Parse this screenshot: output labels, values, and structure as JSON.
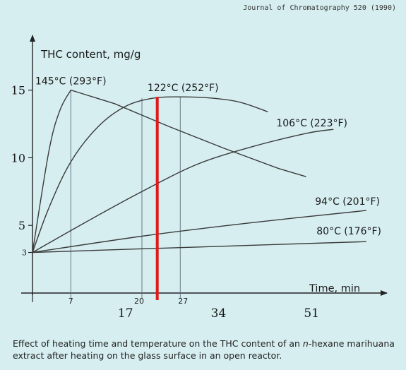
{
  "header": {
    "journal": "Journal of Chromatography 520 (1990)"
  },
  "caption": {
    "part1": "Effect of heating time and temperature on the THC content of an ",
    "italic": "n",
    "part2": "-hexane marihuana extract after heating on the glass surface in an open reactor."
  },
  "chart_data": {
    "type": "line",
    "xlabel": "Time, min",
    "ylabel": "THC content, mg/g",
    "xlim": [
      0,
      64
    ],
    "ylim": [
      0,
      19
    ],
    "y_ticks": [
      {
        "value": 3,
        "label": "3"
      },
      {
        "value": 5,
        "label": "5"
      },
      {
        "value": 10,
        "label": "10"
      },
      {
        "value": 15,
        "label": "15"
      }
    ],
    "x_small_ticks": [
      {
        "value": 7,
        "label": "7"
      },
      {
        "value": 20,
        "label": "20"
      },
      {
        "value": 27,
        "label": "27"
      }
    ],
    "x_large_ticks": [
      {
        "value": 17,
        "label": "17"
      },
      {
        "value": 34,
        "label": "34"
      },
      {
        "value": 51,
        "label": "51"
      }
    ],
    "series": [
      {
        "name": "145°C (293°F)",
        "x": [
          0,
          3,
          5,
          7,
          15,
          25,
          35,
          45,
          50
        ],
        "y": [
          3,
          10.5,
          13.5,
          15,
          14,
          12.3,
          10.7,
          9.2,
          8.6
        ]
      },
      {
        "name": "122°C (252°F)",
        "x": [
          0,
          3,
          7,
          12,
          17,
          22,
          27,
          33,
          38,
          43
        ],
        "y": [
          3,
          6.3,
          9.7,
          12.3,
          13.8,
          14.4,
          14.5,
          14.4,
          14.1,
          13.4
        ]
      },
      {
        "name": "106°C (223°F)",
        "x": [
          0,
          10,
          20,
          30,
          40,
          50,
          55
        ],
        "y": [
          3,
          5.3,
          7.5,
          9.5,
          10.8,
          11.8,
          12.1
        ]
      },
      {
        "name": "94°C (201°F)",
        "x": [
          0,
          20,
          40,
          61
        ],
        "y": [
          3,
          4.2,
          5.2,
          6.1
        ]
      },
      {
        "name": "80°C (176°F)",
        "x": [
          0,
          30,
          61
        ],
        "y": [
          3,
          3.4,
          3.8
        ]
      }
    ],
    "guides": [
      {
        "x": 7,
        "y": 15
      },
      {
        "x": 20,
        "y": 14.4
      },
      {
        "x": 27,
        "y": 14.5
      }
    ],
    "highlight": {
      "x": 22.8,
      "y_from": 0,
      "y_to": 14.5,
      "color": "#e01818"
    },
    "colors": {
      "line": "#3a3a3a",
      "axis": "#222222",
      "background": "#d6eef0"
    }
  }
}
